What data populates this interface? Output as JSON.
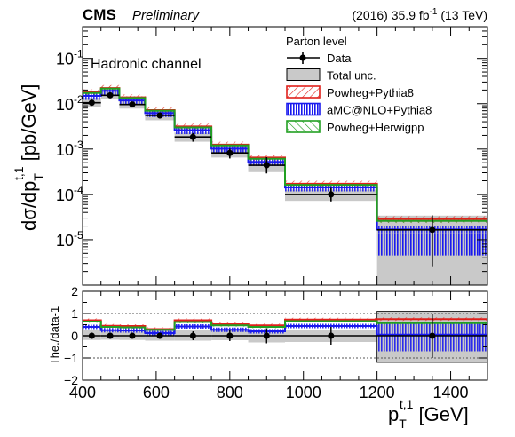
{
  "header": {
    "experiment": "CMS",
    "status": "Preliminary",
    "lumi_prefix": "(2016) 35.9 fb",
    "lumi_exp": "-1",
    "lumi_suffix": " (13 TeV)"
  },
  "chart_data": [
    {
      "panel": "main",
      "type": "histogram-with-points",
      "annotation": "Hadronic channel",
      "ylabel": {
        "main": "dσ/dp",
        "sub": "T",
        "sup": "t,1",
        "unit": " [pb/GeV]"
      },
      "yscale": "log",
      "ylim": [
        1e-06,
        0.5
      ],
      "yticks": [
        "10",
        "10",
        "10",
        "10",
        "10"
      ],
      "ytick_exps": [
        "-1",
        "-2",
        "-3",
        "-4",
        "-5"
      ],
      "ytick_values": [
        0.1,
        0.01,
        0.001,
        0.0001,
        1e-05
      ],
      "xlim": [
        400,
        1500
      ],
      "bins": [
        400,
        450,
        500,
        570,
        650,
        750,
        850,
        950,
        1200,
        1500
      ],
      "legend": {
        "title": "Parton level",
        "position": "top-right",
        "entries": [
          "Data",
          "Total unc.",
          "Powheg+Pythia8",
          "aMC@NLO+Pythia8",
          "Powheg+Herwigpp"
        ]
      },
      "data": {
        "x": [
          425,
          475,
          535,
          610,
          700,
          800,
          900,
          1075,
          1350
        ],
        "y": [
          0.0105,
          0.0153,
          0.0096,
          0.0055,
          0.00185,
          0.00082,
          0.00044,
          0.0001,
          1.65e-05
        ],
        "yerr_up": [
          0.0015,
          0.002,
          0.0012,
          0.0008,
          0.0004,
          0.0002,
          0.00022,
          4e-05,
          1.8e-05
        ],
        "yerr_down": [
          0.0015,
          0.002,
          0.0012,
          0.0008,
          0.0004,
          0.0002,
          0.00015,
          3e-05,
          1.4e-05
        ]
      },
      "total_unc": {
        "up": [
          0.0135,
          0.0185,
          0.0117,
          0.0068,
          0.0023,
          0.001,
          0.00055,
          0.000128,
          3.4e-05
        ],
        "down": [
          0.0085,
          0.0125,
          0.0078,
          0.0043,
          0.00145,
          0.00065,
          0.00031,
          7.2e-05,
          1e-06
        ]
      },
      "series": [
        {
          "name": "Powheg+Pythia8",
          "color": "#e0201b",
          "values": [
            0.0178,
            0.0222,
            0.0138,
            0.0072,
            0.00315,
            0.00125,
            0.00065,
            0.000172,
            2.85e-05
          ]
        },
        {
          "name": "aMC@NLO+Pythia8",
          "color": "#1a1aee",
          "values": [
            0.0148,
            0.0192,
            0.0118,
            0.0062,
            0.0026,
            0.00102,
            0.00052,
            0.000142,
            1.68e-05
          ]
        },
        {
          "name": "Powheg+Herwigpp",
          "color": "#22a022",
          "values": [
            0.0172,
            0.0215,
            0.0133,
            0.007,
            0.003,
            0.0012,
            0.00061,
            0.000162,
            2.6e-05
          ]
        }
      ]
    },
    {
      "panel": "ratio",
      "type": "histogram-with-points",
      "ylabel": "The./data-1",
      "ylim": [
        -2,
        2
      ],
      "yticks": [
        "2",
        "1",
        "0",
        "−1",
        "−2"
      ],
      "ytick_values": [
        2,
        1,
        0,
        -1,
        -2
      ],
      "xlabel": {
        "main": "p",
        "sub": "T",
        "sup": "t,1",
        "unit": " [GeV]"
      },
      "xticks": [
        "400",
        "600",
        "800",
        "1000",
        "1200",
        "1400"
      ],
      "xtick_values": [
        400,
        600,
        800,
        1000,
        1200,
        1400
      ],
      "reference_lines": [
        1,
        -1
      ],
      "data": {
        "x": [
          425,
          475,
          535,
          610,
          700,
          800,
          900,
          1075,
          1350
        ],
        "y": [
          0,
          0,
          0,
          0,
          0,
          0,
          0,
          0,
          0
        ],
        "yerr": [
          0.14,
          0.13,
          0.12,
          0.14,
          0.2,
          0.24,
          0.34,
          0.4,
          1.0
        ]
      },
      "total_unc": {
        "up": [
          0.28,
          0.21,
          0.22,
          0.24,
          0.25,
          0.26,
          0.25,
          0.28,
          1.1
        ],
        "down": [
          -0.19,
          -0.18,
          -0.19,
          -0.22,
          -0.22,
          -0.2,
          -0.3,
          -0.28,
          -1.2
        ]
      },
      "series": [
        {
          "name": "Powheg+Pythia8",
          "color": "#e0201b",
          "values": [
            0.7,
            0.45,
            0.44,
            0.3,
            0.7,
            0.52,
            0.47,
            0.73,
            0.75
          ]
        },
        {
          "name": "aMC@NLO+Pythia8",
          "color": "#1a1aee",
          "values": [
            0.4,
            0.25,
            0.24,
            0.12,
            0.42,
            0.27,
            0.2,
            0.44,
            0.05
          ]
        },
        {
          "name": "Powheg+Herwigpp",
          "color": "#22a022",
          "values": [
            0.64,
            0.4,
            0.38,
            0.27,
            0.62,
            0.47,
            0.4,
            0.66,
            0.57
          ]
        }
      ]
    }
  ]
}
